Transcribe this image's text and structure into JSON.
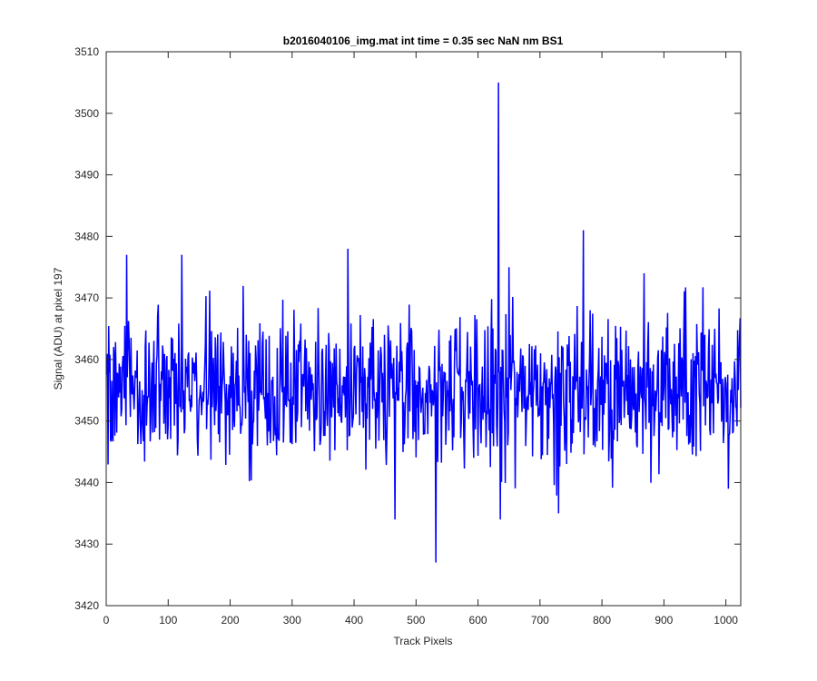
{
  "chart_data": {
    "type": "line",
    "title": "b2016040106_img.mat int time = 0.35 sec  NaN nm BS1",
    "xlabel": "Track Pixels",
    "ylabel": "Signal (ADU) at pixel 197",
    "xlim": [
      0,
      1024
    ],
    "ylim": [
      3420,
      3510
    ],
    "x_ticks": [
      0,
      100,
      200,
      300,
      400,
      500,
      600,
      700,
      800,
      900,
      1000
    ],
    "y_ticks": [
      3420,
      3430,
      3440,
      3450,
      3460,
      3470,
      3480,
      3490,
      3500,
      3510
    ],
    "grid": false,
    "legend": "none",
    "line_color": "#0000ff",
    "series": [
      {
        "x_start": 1,
        "x_step": 1,
        "n_points": 1024,
        "baseline": 3455,
        "noise_sd": 6,
        "values_note_points": [
          {
            "x": 33,
            "y": 3477
          },
          {
            "x": 122,
            "y": 3477
          },
          {
            "x": 390,
            "y": 3478
          },
          {
            "x": 466,
            "y": 3434
          },
          {
            "x": 532,
            "y": 3427
          },
          {
            "x": 633,
            "y": 3505
          },
          {
            "x": 636,
            "y": 3434
          },
          {
            "x": 650,
            "y": 3475
          },
          {
            "x": 730,
            "y": 3435
          },
          {
            "x": 770,
            "y": 3481
          },
          {
            "x": 1004,
            "y": 3439
          }
        ]
      }
    ]
  }
}
